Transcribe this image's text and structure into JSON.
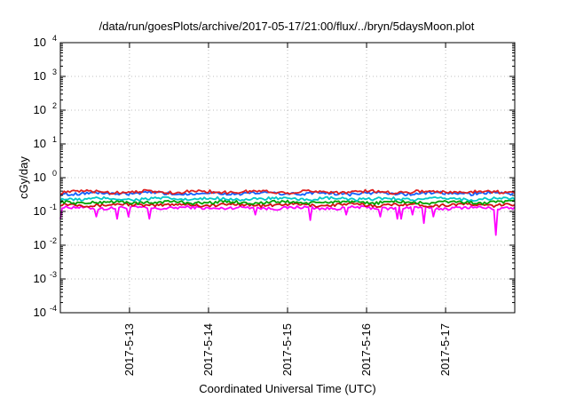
{
  "chart_data": {
    "type": "line",
    "title": "/data/run/goesPlots/archive/2017-05-17/21:00/flux/../bryn/5daysMoon.plot",
    "xlabel": "Coordinated Universal Time (UTC)",
    "ylabel": "cGy/day",
    "x_range": [
      "2017-05-12 03:00",
      "2017-05-17 21:00"
    ],
    "x_ticks": [
      "2017-5-13",
      "2017-5-14",
      "2017-5-15",
      "2017-5-16",
      "2017-5-17"
    ],
    "y_scale": "log",
    "ylim": [
      0.0001,
      10000
    ],
    "y_ticks": [
      {
        "base": "10",
        "exp": "-4"
      },
      {
        "base": "10",
        "exp": "-3"
      },
      {
        "base": "10",
        "exp": "-2"
      },
      {
        "base": "10",
        "exp": "-1"
      },
      {
        "base": "10",
        "exp": "0"
      },
      {
        "base": "10",
        "exp": "1"
      },
      {
        "base": "10",
        "exp": "2"
      },
      {
        "base": "10",
        "exp": "3"
      },
      {
        "base": "10",
        "exp": "4"
      }
    ],
    "grid": true,
    "legend": "none",
    "series": [
      {
        "color": "#ff00ff",
        "typical": 0.13,
        "dips": [
          [
            "2017-05-12 03:00",
            0.06
          ],
          [
            "2017-05-12 14:00",
            0.07
          ],
          [
            "2017-05-12 20:30",
            0.06
          ],
          [
            "2017-05-12 23:30",
            0.07
          ],
          [
            "2017-05-13 06:00",
            0.06
          ],
          [
            "2017-05-14 14:00",
            0.08
          ],
          [
            "2017-05-15 07:00",
            0.055
          ],
          [
            "2017-05-15 18:00",
            0.08
          ],
          [
            "2017-05-16 04:00",
            0.07
          ],
          [
            "2017-05-16 09:30",
            0.06
          ],
          [
            "2017-05-16 10:30",
            0.06
          ],
          [
            "2017-05-16 14:00",
            0.08
          ],
          [
            "2017-05-16 17:30",
            0.045
          ],
          [
            "2017-05-16 20:30",
            0.07
          ],
          [
            "2017-05-17 15:00",
            0.02
          ]
        ]
      },
      {
        "color": "#d01010",
        "typical": 0.16
      },
      {
        "color": "#00a000",
        "typical": 0.19
      },
      {
        "color": "#00c8c8",
        "typical": 0.24
      },
      {
        "color": "#1060ff",
        "typical": 0.35
      },
      {
        "color": "#e02020",
        "typical": 0.39
      }
    ]
  }
}
